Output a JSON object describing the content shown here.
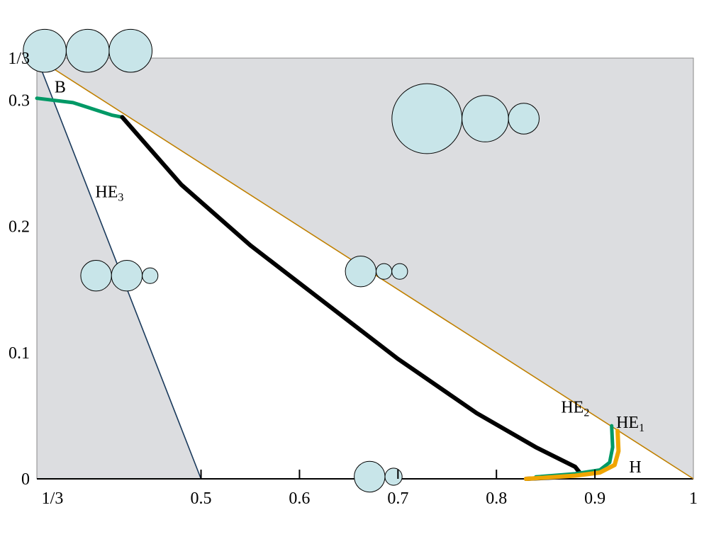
{
  "chart_data": {
    "type": "line",
    "x_ticks": [
      {
        "value": 0.3333,
        "label": "1/3"
      },
      {
        "value": 0.5,
        "label": "0.5"
      },
      {
        "value": 0.6,
        "label": "0.6"
      },
      {
        "value": 0.7,
        "label": "0.7"
      },
      {
        "value": 0.8,
        "label": "0.8"
      },
      {
        "value": 0.9,
        "label": "0.9"
      },
      {
        "value": 1.0,
        "label": "1"
      }
    ],
    "y_ticks": [
      {
        "value": 0.0,
        "label": "0"
      },
      {
        "value": 0.1,
        "label": "0.1"
      },
      {
        "value": 0.2,
        "label": "0.2"
      },
      {
        "value": 0.3,
        "label": "0.3"
      },
      {
        "value": 0.3333,
        "label": "1/3"
      }
    ],
    "xlim": [
      0.3333,
      1.0
    ],
    "ylim": [
      0.0,
      0.3333
    ],
    "grid": false,
    "colors": {
      "shaded_region": "#dcdde0",
      "bubble_fill": "#c8e5e9",
      "green_curve": "#009966",
      "orange_curve": "#f0a500",
      "black_curve": "#000000",
      "blue_line": "#1a3a5c",
      "orange_line": "#c08000"
    },
    "lines": [
      {
        "id": "left-boundary",
        "color": "blue_line",
        "points": [
          [
            0.3333,
            0.3333
          ],
          [
            0.5,
            0.0
          ]
        ]
      },
      {
        "id": "upper-boundary",
        "color": "orange_line",
        "points": [
          [
            0.3333,
            0.3333
          ],
          [
            1.0,
            0.0
          ]
        ]
      }
    ],
    "curves": [
      {
        "id": "HE3",
        "color": "green_curve",
        "width": 5,
        "points": [
          [
            0.3333,
            0.3015
          ],
          [
            0.37,
            0.298
          ],
          [
            0.41,
            0.288
          ],
          [
            0.42,
            0.2865
          ]
        ]
      },
      {
        "id": "HE2",
        "color": "black_curve",
        "width": 6,
        "points": [
          [
            0.42,
            0.2865
          ],
          [
            0.48,
            0.233
          ],
          [
            0.55,
            0.185
          ],
          [
            0.62,
            0.143
          ],
          [
            0.7,
            0.095
          ],
          [
            0.78,
            0.052
          ],
          [
            0.84,
            0.025
          ],
          [
            0.88,
            0.0095
          ],
          [
            0.885,
            0.0045
          ],
          [
            0.87,
            0.0015
          ],
          [
            0.83,
            0.0
          ]
        ]
      },
      {
        "id": "HE1-green",
        "color": "green_curve",
        "width": 5,
        "points": [
          [
            0.917,
            0.042
          ],
          [
            0.918,
            0.025
          ],
          [
            0.915,
            0.013
          ],
          [
            0.905,
            0.007
          ],
          [
            0.88,
            0.004
          ],
          [
            0.84,
            0.0015
          ]
        ]
      },
      {
        "id": "HE1-orange",
        "color": "orange_curve",
        "width": 6,
        "points": [
          [
            0.923,
            0.038
          ],
          [
            0.924,
            0.022
          ],
          [
            0.92,
            0.011
          ],
          [
            0.905,
            0.005
          ],
          [
            0.88,
            0.0025
          ],
          [
            0.83,
            0.0
          ]
        ]
      }
    ],
    "annotations": [
      {
        "text": "B",
        "sub": "",
        "x": 0.357,
        "y": 0.3105
      },
      {
        "text": "HE",
        "sub": "3",
        "x": 0.407,
        "y": 0.2275
      },
      {
        "text": "HE",
        "sub": "2",
        "x": 0.88,
        "y": 0.057
      },
      {
        "text": "HE",
        "sub": "1",
        "x": 0.936,
        "y": 0.045
      },
      {
        "text": "H",
        "sub": "",
        "x": 0.941,
        "y": 0.0095
      }
    ],
    "bubble_clusters": [
      {
        "id": "top-left",
        "x": 0.3413,
        "y": 0.3391,
        "r": [
          0.0218,
          0.0218,
          0.0218
        ]
      },
      {
        "id": "upper-right",
        "x": 0.7294,
        "y": 0.2853,
        "r": [
          0.0356,
          0.0236,
          0.0156
        ]
      },
      {
        "id": "mid-left",
        "x": 0.3935,
        "y": 0.1609,
        "r": [
          0.0156,
          0.0156,
          0.008
        ]
      },
      {
        "id": "mid-center",
        "x": 0.6622,
        "y": 0.1643,
        "r": [
          0.0156,
          0.008,
          0.008
        ]
      },
      {
        "id": "bottom-center",
        "x": 0.6712,
        "y": 0.0017,
        "r": [
          0.0156,
          0.0087
        ]
      }
    ]
  }
}
